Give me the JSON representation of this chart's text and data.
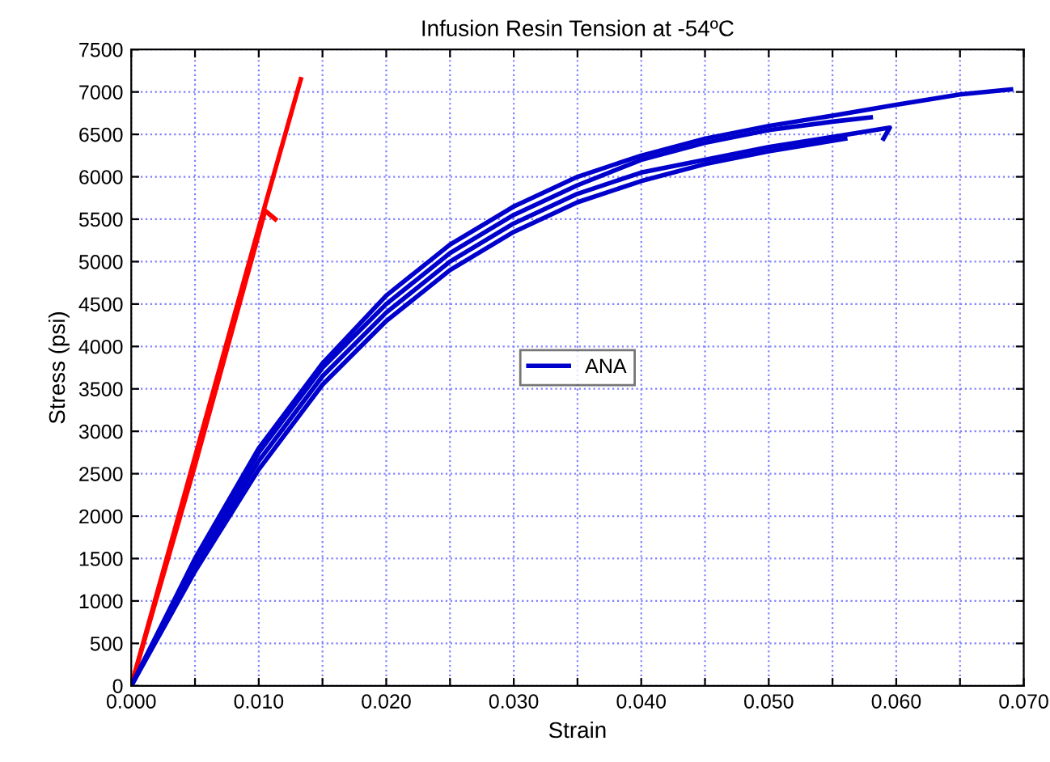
{
  "chart_data": {
    "type": "line",
    "title": "Infusion Resin Tension at -54ºC",
    "xlabel": "Strain",
    "ylabel": "Stress (psi)",
    "xlim": [
      0,
      0.07
    ],
    "ylim": [
      0,
      7500
    ],
    "xticks": [
      {
        "value": 0,
        "label": "0.000"
      },
      {
        "value": 0.005,
        "label": null
      },
      {
        "value": 0.01,
        "label": "0.010"
      },
      {
        "value": 0.015,
        "label": null
      },
      {
        "value": 0.02,
        "label": "0.020"
      },
      {
        "value": 0.025,
        "label": null
      },
      {
        "value": 0.03,
        "label": "0.030"
      },
      {
        "value": 0.035,
        "label": null
      },
      {
        "value": 0.04,
        "label": "0.040"
      },
      {
        "value": 0.045,
        "label": null
      },
      {
        "value": 0.05,
        "label": "0.050"
      },
      {
        "value": 0.055,
        "label": null
      },
      {
        "value": 0.06,
        "label": "0.060"
      },
      {
        "value": 0.065,
        "label": null
      },
      {
        "value": 0.07,
        "label": "0.070"
      }
    ],
    "yticks": [
      0,
      500,
      1000,
      1500,
      2000,
      2500,
      3000,
      3500,
      4000,
      4500,
      5000,
      5500,
      6000,
      6500,
      7000,
      7500
    ],
    "grid": true,
    "legend": "center",
    "line_style": "solid",
    "marker": "none",
    "series": [
      {
        "color": "#ff0000",
        "x": [
          0,
          0.005,
          0.01,
          0.0133
        ],
        "values": [
          0,
          2700,
          5400,
          7150
        ]
      },
      {
        "color": "#ff0000",
        "x": [
          0,
          0.005,
          0.0105,
          0.0113
        ],
        "values": [
          0,
          2600,
          5600,
          5500
        ]
      },
      {
        "name": "ANA",
        "color": "#0000cc",
        "x": [
          0,
          0.005,
          0.01,
          0.015,
          0.02,
          0.025,
          0.03,
          0.035,
          0.04,
          0.045,
          0.05,
          0.055,
          0.06,
          0.065,
          0.069
        ],
        "values": [
          0,
          1500,
          2800,
          3800,
          4600,
          5200,
          5650,
          6000,
          6250,
          6450,
          6600,
          6720,
          6850,
          6970,
          7030
        ]
      },
      {
        "color": "#0000cc",
        "x": [
          0,
          0.005,
          0.01,
          0.015,
          0.02,
          0.025,
          0.03,
          0.035,
          0.04,
          0.045,
          0.05,
          0.055,
          0.058
        ],
        "values": [
          0,
          1450,
          2750,
          3750,
          4500,
          5100,
          5550,
          5900,
          6200,
          6400,
          6550,
          6650,
          6700
        ]
      },
      {
        "color": "#0000cc",
        "x": [
          0,
          0.005,
          0.01,
          0.015,
          0.02,
          0.025,
          0.03,
          0.035,
          0.04,
          0.045,
          0.05,
          0.055,
          0.0595,
          0.059
        ],
        "values": [
          0,
          1400,
          2650,
          3650,
          4400,
          5000,
          5450,
          5800,
          6050,
          6200,
          6350,
          6470,
          6580,
          6450
        ]
      },
      {
        "color": "#0000cc",
        "x": [
          0,
          0.005,
          0.01,
          0.015,
          0.02,
          0.025,
          0.03,
          0.035,
          0.04,
          0.045,
          0.05,
          0.056
        ],
        "values": [
          0,
          1350,
          2550,
          3550,
          4300,
          4900,
          5350,
          5700,
          5950,
          6150,
          6300,
          6450
        ]
      }
    ]
  }
}
